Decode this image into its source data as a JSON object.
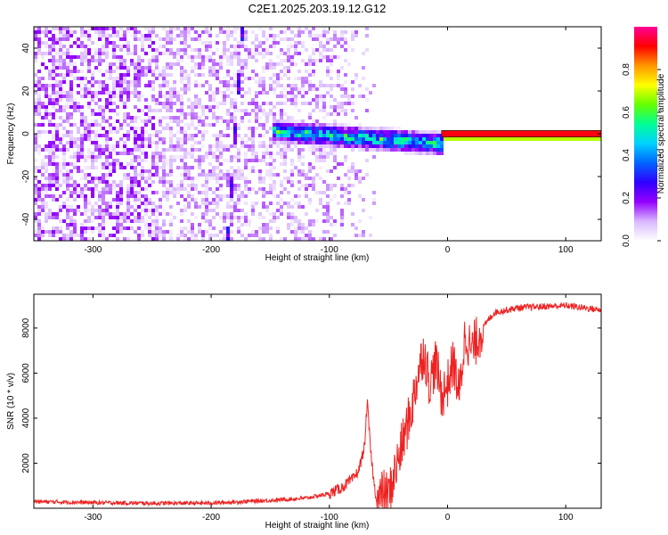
{
  "title": "C2E1.2025.203.19.12.G12",
  "chart_data": [
    {
      "type": "heatmap",
      "xlabel": "Height of straight line (km)",
      "ylabel": "Frequency (Hz)",
      "xlim": [
        -350,
        130
      ],
      "ylim": [
        -50,
        50
      ],
      "xticks": [
        -300,
        -200,
        -100,
        0,
        100
      ],
      "xtick_labels": [
        "-300",
        "-200",
        "-100",
        "0",
        "100"
      ],
      "yticks": [
        -40,
        -20,
        0,
        20,
        40
      ],
      "ytick_labels": [
        "-40",
        "-20",
        "0",
        "20",
        "40"
      ],
      "colorbar": {
        "label": "Normalized spectral amplitude",
        "range": [
          0,
          1
        ],
        "ticks": [
          0.0,
          0.2,
          0.4,
          0.6,
          0.8
        ],
        "tick_labels": [
          "0.0",
          "0.2",
          "0.4",
          "0.6",
          "0.8"
        ],
        "colormap": [
          "#ffffff",
          "#d9b8ff",
          "#9400ff",
          "#3000ff",
          "#0064ff",
          "#00d2ff",
          "#00ff96",
          "#64ff00",
          "#ffff00",
          "#ff9600",
          "#ff0000",
          "#ff0096"
        ]
      },
      "features": [
        {
          "description": "dominant line",
          "x": [
            -5,
            130
          ],
          "frequency": 0,
          "amplitude": 0.95
        },
        {
          "description": "signal track",
          "x": [
            -150,
            -5
          ],
          "frequency": [
            2,
            -4
          ],
          "amplitude": 0.5
        },
        {
          "description": "diagonal streak",
          "x": [
            -185,
            -175
          ],
          "frequency": [
            -30,
            50
          ],
          "amplitude": 0.25
        },
        {
          "description": "noise region",
          "x": [
            -350,
            -100
          ],
          "frequency": [
            -50,
            50
          ],
          "amplitude": 0.15
        }
      ],
      "grid": false
    },
    {
      "type": "line",
      "xlabel": "Height of straight line (km)",
      "ylabel": "SNR (10 * v/v)",
      "xlim": [
        -350,
        130
      ],
      "ylim": [
        0,
        9500
      ],
      "xticks": [
        -300,
        -200,
        -100,
        0,
        100
      ],
      "xtick_labels": [
        "-300",
        "-200",
        "-100",
        "0",
        "100"
      ],
      "yticks": [
        2000,
        4000,
        6000,
        8000
      ],
      "ytick_labels": [
        "2000",
        "4000",
        "6000",
        "8000"
      ],
      "series": [
        {
          "color": "#ee2222",
          "x": [
            -350,
            -300,
            -250,
            -200,
            -150,
            -120,
            -100,
            -90,
            -80,
            -75,
            -70,
            -68,
            -65,
            -62,
            -60,
            -58,
            -55,
            -52,
            -50,
            -45,
            -40,
            -35,
            -30,
            -25,
            -20,
            -15,
            -10,
            -5,
            0,
            5,
            10,
            15,
            20,
            25,
            30,
            35,
            40,
            50,
            60,
            80,
            100,
            115,
            130
          ],
          "y": [
            300,
            250,
            220,
            230,
            350,
            450,
            650,
            900,
            1300,
            1700,
            2800,
            4800,
            2500,
            1000,
            400,
            300,
            700,
            600,
            500,
            1500,
            2500,
            3500,
            4500,
            6000,
            7000,
            5500,
            6500,
            5000,
            5500,
            6500,
            5000,
            7800,
            7000,
            7500,
            8000,
            8400,
            8700,
            8800,
            8900,
            8950,
            9000,
            8900,
            8800
          ]
        }
      ],
      "grid": false
    }
  ]
}
